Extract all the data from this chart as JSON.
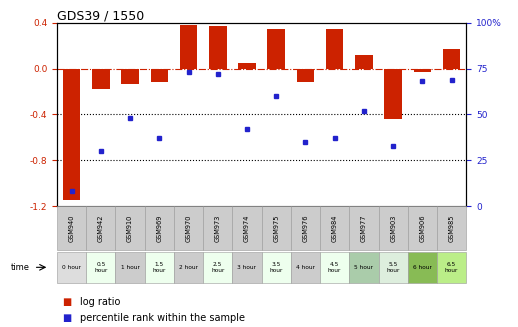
{
  "title": "GDS39 / 1550",
  "samples": [
    "GSM940",
    "GSM942",
    "GSM910",
    "GSM969",
    "GSM970",
    "GSM973",
    "GSM974",
    "GSM975",
    "GSM976",
    "GSM984",
    "GSM977",
    "GSM903",
    "GSM906",
    "GSM985"
  ],
  "time_labels": [
    "0 hour",
    "0.5\nhour",
    "1 hour",
    "1.5\nhour",
    "2 hour",
    "2.5\nhour",
    "3 hour",
    "3.5\nhour",
    "4 hour",
    "4.5\nhour",
    "5 hour",
    "5.5\nhour",
    "6 hour",
    "6.5\nhour"
  ],
  "log_ratio": [
    -1.15,
    -0.18,
    -0.13,
    -0.12,
    0.38,
    0.37,
    0.05,
    0.35,
    -0.12,
    0.35,
    0.12,
    -0.44,
    -0.03,
    0.17
  ],
  "percentile": [
    8,
    30,
    48,
    37,
    73,
    72,
    42,
    60,
    35,
    37,
    52,
    33,
    68,
    69
  ],
  "ylim_left": [
    -1.2,
    0.4
  ],
  "ylim_right": [
    0,
    100
  ],
  "yticks_left": [
    -1.2,
    -0.8,
    -0.4,
    0.0,
    0.4
  ],
  "yticks_right": [
    0,
    25,
    50,
    75,
    100
  ],
  "bar_color": "#cc2200",
  "dot_color": "#2222cc",
  "dash_line_color": "#cc2200",
  "dot_line_color": "#000000",
  "bg_color": "#ffffff",
  "time_colors": [
    "#dddddd",
    "#eeffee",
    "#cccccc",
    "#eeffee",
    "#cccccc",
    "#eeffee",
    "#cccccc",
    "#eeffee",
    "#cccccc",
    "#eeffee",
    "#aaccaa",
    "#ddeedd",
    "#88bb55",
    "#bbee88"
  ],
  "sample_bg": "#cccccc",
  "title_fontsize": 9,
  "tick_fontsize": 6.5,
  "legend_fontsize": 7
}
